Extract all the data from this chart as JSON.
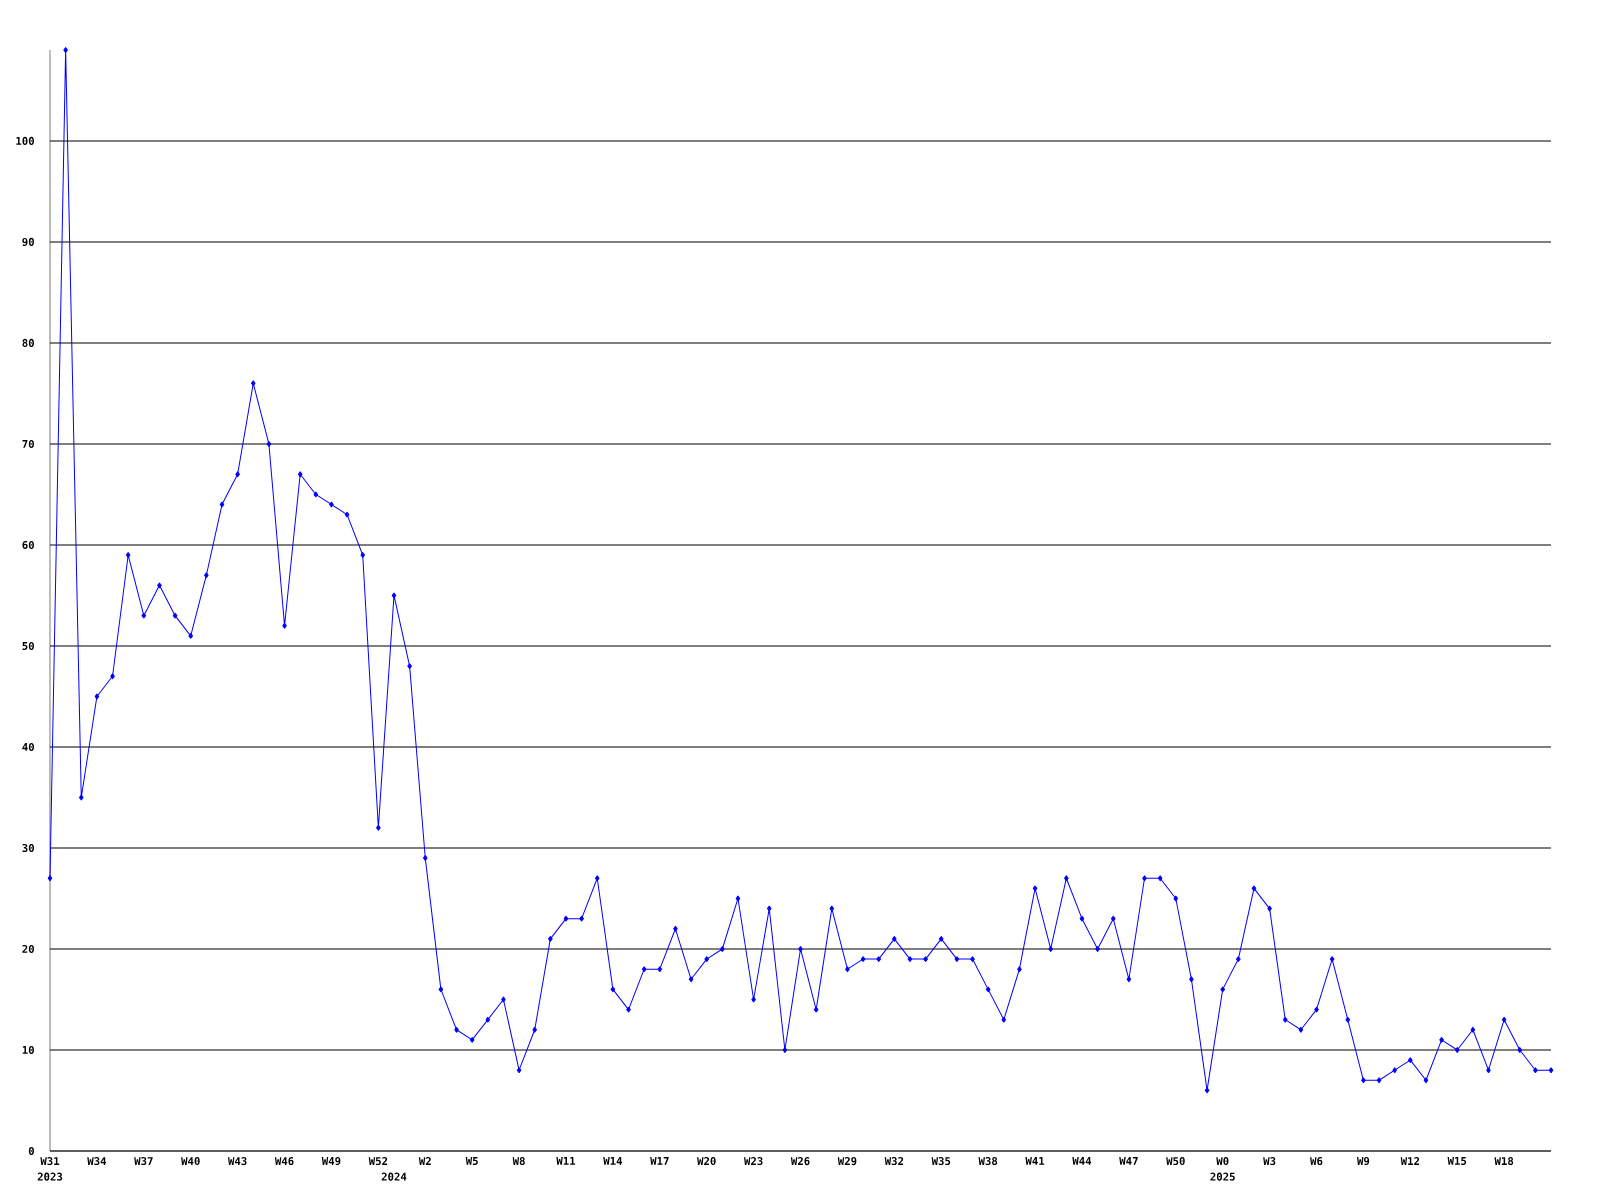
{
  "chart_data": {
    "type": "line",
    "color": "#0000ff",
    "marker": "diamond",
    "line_style": "solid",
    "grid": "y",
    "x": [
      "2023-07-31",
      "2023-08-07",
      "2023-08-14",
      "2023-08-21",
      "2023-08-28",
      "2023-09-04",
      "2023-09-11",
      "2023-09-18",
      "2023-09-25",
      "2023-10-02",
      "2023-10-09",
      "2023-10-16",
      "2023-10-23",
      "2023-10-30",
      "2023-11-06",
      "2023-11-13",
      "2023-11-20",
      "2023-11-27",
      "2023-12-04",
      "2023-12-11",
      "2023-12-18",
      "2023-12-25",
      "2024-01-01",
      "2024-01-08",
      "2024-01-15",
      "2024-01-22",
      "2024-01-29",
      "2024-02-05",
      "2024-02-12",
      "2024-02-19",
      "2024-02-26",
      "2024-03-04",
      "2024-03-11",
      "2024-03-18",
      "2024-03-25",
      "2024-04-01",
      "2024-04-08",
      "2024-04-15",
      "2024-04-22",
      "2024-04-29",
      "2024-05-06",
      "2024-05-13",
      "2024-05-20",
      "2024-05-27",
      "2024-06-03",
      "2024-06-10",
      "2024-06-17",
      "2024-06-24",
      "2024-07-01",
      "2024-07-08",
      "2024-07-15",
      "2024-07-22",
      "2024-07-29",
      "2024-08-05",
      "2024-08-12",
      "2024-08-19",
      "2024-08-26",
      "2024-09-02",
      "2024-09-09",
      "2024-09-16",
      "2024-09-23",
      "2024-09-30",
      "2024-10-07",
      "2024-10-14",
      "2024-10-21",
      "2024-10-28",
      "2024-11-04",
      "2024-11-11",
      "2024-11-18",
      "2024-11-25",
      "2024-12-02",
      "2024-12-09",
      "2024-12-16",
      "2024-12-23",
      "2024-12-30",
      "2025-01-06",
      "2025-01-13",
      "2025-01-20",
      "2025-01-27",
      "2025-02-03",
      "2025-02-10",
      "2025-02-17",
      "2025-02-24",
      "2025-03-03",
      "2025-03-10",
      "2025-03-17",
      "2025-03-24",
      "2025-03-31",
      "2025-04-07",
      "2025-04-14",
      "2025-04-21",
      "2025-04-28",
      "2025-05-05",
      "2025-05-12",
      "2025-05-19",
      "2025-05-26",
      "2025-06-02"
    ],
    "values": [
      27,
      109,
      35,
      45,
      47,
      59,
      53,
      56,
      53,
      51,
      57,
      64,
      67,
      76,
      70,
      52,
      67,
      65,
      64,
      63,
      59,
      32,
      55,
      48,
      29,
      16,
      12,
      11,
      13,
      15,
      8,
      12,
      21,
      23,
      23,
      27,
      16,
      14,
      18,
      18,
      22,
      17,
      19,
      20,
      25,
      15,
      24,
      10,
      20,
      14,
      24,
      18,
      19,
      19,
      21,
      19,
      19,
      21,
      19,
      19,
      16,
      13,
      18,
      26,
      20,
      27,
      23,
      20,
      23,
      17,
      27,
      27,
      25,
      17,
      6,
      16,
      19,
      26,
      24,
      13,
      12,
      14,
      19,
      13,
      7,
      7,
      8,
      9,
      7,
      11,
      10,
      12,
      8,
      13,
      10,
      8,
      8
    ],
    "xlim": [
      "2023-07-31",
      "2025-06-02"
    ],
    "xticks": [
      {
        "value": "2023-07-31",
        "label": "W31"
      },
      {
        "value": "2023-08-21",
        "label": "W34"
      },
      {
        "value": "2023-09-11",
        "label": "W37"
      },
      {
        "value": "2023-10-02",
        "label": "W40"
      },
      {
        "value": "2023-10-23",
        "label": "W43"
      },
      {
        "value": "2023-11-13",
        "label": "W46"
      },
      {
        "value": "2023-12-04",
        "label": "W49"
      },
      {
        "value": "2023-12-25",
        "label": "W52"
      },
      {
        "value": "2024-01-15",
        "label": "W2"
      },
      {
        "value": "2024-02-05",
        "label": "W5"
      },
      {
        "value": "2024-02-26",
        "label": "W8"
      },
      {
        "value": "2024-03-18",
        "label": "W11"
      },
      {
        "value": "2024-04-08",
        "label": "W14"
      },
      {
        "value": "2024-04-29",
        "label": "W17"
      },
      {
        "value": "2024-05-20",
        "label": "W20"
      },
      {
        "value": "2024-06-10",
        "label": "W23"
      },
      {
        "value": "2024-07-01",
        "label": "W26"
      },
      {
        "value": "2024-07-22",
        "label": "W29"
      },
      {
        "value": "2024-08-12",
        "label": "W32"
      },
      {
        "value": "2024-09-02",
        "label": "W35"
      },
      {
        "value": "2024-09-23",
        "label": "W38"
      },
      {
        "value": "2024-10-14",
        "label": "W41"
      },
      {
        "value": "2024-11-04",
        "label": "W44"
      },
      {
        "value": "2024-11-25",
        "label": "W47"
      },
      {
        "value": "2024-12-16",
        "label": "W50"
      },
      {
        "value": "2025-01-06",
        "label": "W0"
      },
      {
        "value": "2025-01-27",
        "label": "W3"
      },
      {
        "value": "2025-02-17",
        "label": "W6"
      },
      {
        "value": "2025-03-10",
        "label": "W9"
      },
      {
        "value": "2025-03-31",
        "label": "W12"
      },
      {
        "value": "2025-04-21",
        "label": "W15"
      },
      {
        "value": "2025-05-12",
        "label": "W18"
      }
    ],
    "ylim": [
      0,
      109
    ],
    "yticks": [
      0,
      10,
      20,
      30,
      40,
      50,
      60,
      70,
      80,
      90,
      100
    ],
    "annotations": [
      "2023",
      "2024",
      "2025"
    ]
  }
}
